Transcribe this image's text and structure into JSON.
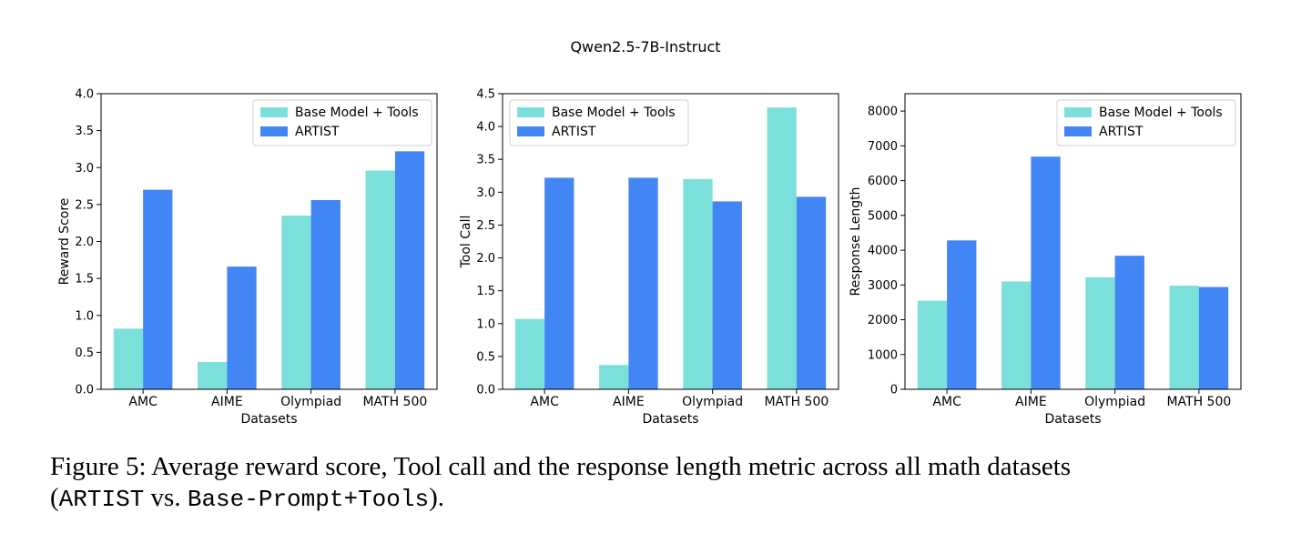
{
  "suptitle": "Qwen2.5-7B-Instruct",
  "colors": {
    "base": "#7be0d9",
    "artist": "#4285f4"
  },
  "chart_data": [
    {
      "type": "bar",
      "categories": [
        "AMC",
        "AIME",
        "Olympiad",
        "MATH 500"
      ],
      "series": [
        {
          "name": "Base Model + Tools",
          "values": [
            0.82,
            0.37,
            2.35,
            2.96
          ]
        },
        {
          "name": "ARTIST",
          "values": [
            2.7,
            1.66,
            2.56,
            3.22
          ]
        }
      ],
      "xlabel": "Datasets",
      "ylabel": "Reward Score",
      "ylim": [
        0,
        4.0
      ],
      "yticks": [
        "0.0",
        "0.5",
        "1.0",
        "1.5",
        "2.0",
        "2.5",
        "3.0",
        "3.5",
        "4.0"
      ],
      "legend": "top-right",
      "grid": false
    },
    {
      "type": "bar",
      "categories": [
        "AMC",
        "AIME",
        "Olympiad",
        "MATH 500"
      ],
      "series": [
        {
          "name": "Base Model + Tools",
          "values": [
            1.07,
            0.37,
            3.2,
            4.29
          ]
        },
        {
          "name": "ARTIST",
          "values": [
            3.22,
            3.22,
            2.86,
            2.93
          ]
        }
      ],
      "xlabel": "Datasets",
      "ylabel": "Tool Call",
      "ylim": [
        0,
        4.5
      ],
      "yticks": [
        "0.0",
        "0.5",
        "1.0",
        "1.5",
        "2.0",
        "2.5",
        "3.0",
        "3.5",
        "4.0",
        "4.5"
      ],
      "legend": "top-left",
      "grid": false
    },
    {
      "type": "bar",
      "categories": [
        "AMC",
        "AIME",
        "Olympiad",
        "MATH 500"
      ],
      "series": [
        {
          "name": "Base Model + Tools",
          "values": [
            2550,
            3100,
            3220,
            2980
          ]
        },
        {
          "name": "ARTIST",
          "values": [
            4280,
            6690,
            3840,
            2940
          ]
        }
      ],
      "xlabel": "Datasets",
      "ylabel": "Response Length",
      "ylim": [
        0,
        8500
      ],
      "yticks": [
        "0",
        "1000",
        "2000",
        "3000",
        "4000",
        "5000",
        "6000",
        "7000",
        "8000"
      ],
      "legend": "top-right",
      "grid": false
    }
  ],
  "caption": {
    "line1": "Figure 5: Average reward score, Tool call and the response length metric across all math datasets",
    "line2_open": "(",
    "line2_artist": "ARTIST",
    "line2_vs": " vs. ",
    "line2_base": "Base-Prompt+Tools",
    "line2_close": ")."
  }
}
